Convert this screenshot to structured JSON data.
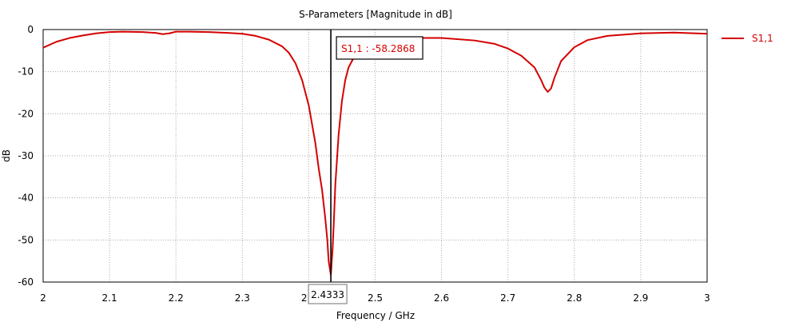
{
  "chart_data": {
    "type": "line",
    "title": "S-Parameters [Magnitude in dB]",
    "xlabel": "Frequency / GHz",
    "ylabel": "dB",
    "xlim": [
      2,
      3
    ],
    "ylim": [
      -60,
      0
    ],
    "xticks": [
      "2",
      "2.1",
      "2.2",
      "2.3",
      "2.4",
      "2.5",
      "2.6",
      "2.7",
      "2.8",
      "2.9",
      "3"
    ],
    "yticks": [
      "0",
      "-10",
      "-20",
      "-30",
      "-40",
      "-50",
      "-60"
    ],
    "grid": true,
    "legend_position": "right",
    "series": [
      {
        "name": "S1,1",
        "color": "#d40000",
        "x": [
          2.0,
          2.02,
          2.04,
          2.06,
          2.08,
          2.1,
          2.12,
          2.15,
          2.17,
          2.18,
          2.19,
          2.2,
          2.22,
          2.25,
          2.28,
          2.3,
          2.32,
          2.34,
          2.36,
          2.37,
          2.38,
          2.39,
          2.4,
          2.41,
          2.415,
          2.42,
          2.425,
          2.428,
          2.43,
          2.4333,
          2.436,
          2.438,
          2.44,
          2.445,
          2.45,
          2.455,
          2.46,
          2.47,
          2.48,
          2.5,
          2.52,
          2.55,
          2.6,
          2.65,
          2.68,
          2.7,
          2.72,
          2.74,
          2.75,
          2.755,
          2.76,
          2.765,
          2.77,
          2.78,
          2.8,
          2.82,
          2.85,
          2.9,
          2.95,
          3.0
        ],
        "y": [
          -4.3,
          -2.9,
          -2.0,
          -1.4,
          -0.9,
          -0.6,
          -0.5,
          -0.6,
          -0.8,
          -1.1,
          -0.9,
          -0.5,
          -0.5,
          -0.6,
          -0.8,
          -1.0,
          -1.5,
          -2.4,
          -4.0,
          -5.5,
          -8.0,
          -12.0,
          -18.0,
          -27.0,
          -33.0,
          -38.0,
          -45.0,
          -50.0,
          -55.0,
          -58.2868,
          -52.0,
          -45.0,
          -37.0,
          -25.0,
          -17.0,
          -12.0,
          -9.0,
          -6.0,
          -4.5,
          -3.0,
          -2.4,
          -2.0,
          -2.0,
          -2.6,
          -3.4,
          -4.5,
          -6.2,
          -9.0,
          -12.0,
          -13.8,
          -14.8,
          -14.0,
          -11.5,
          -7.5,
          -4.2,
          -2.5,
          -1.5,
          -0.9,
          -0.7,
          -1.0
        ]
      }
    ],
    "marker": {
      "x": 2.4333,
      "x_label": "2.4333",
      "label": "S1,1 : -58.2868"
    }
  }
}
